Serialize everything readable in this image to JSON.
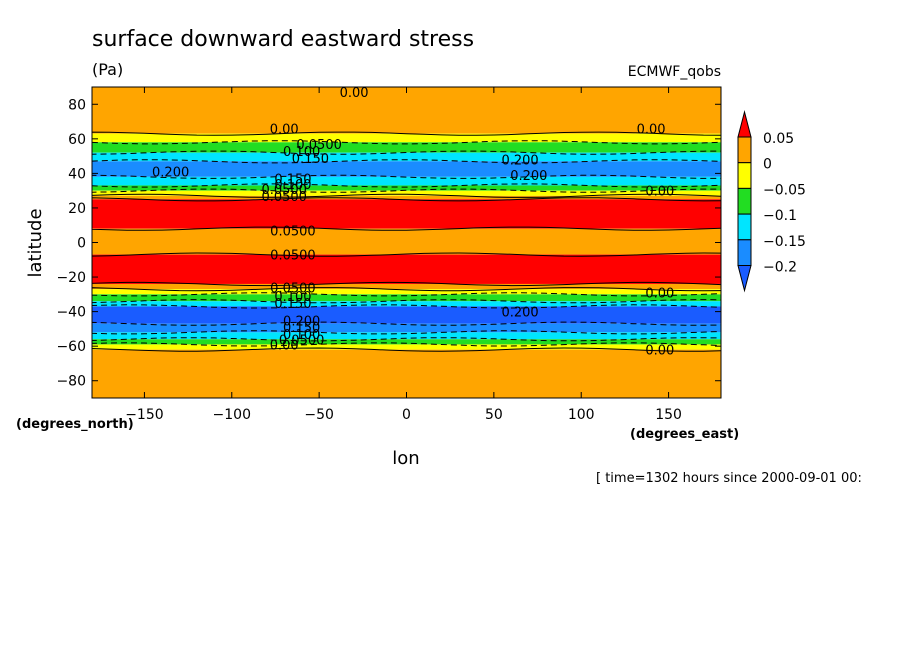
{
  "chart_data": {
    "type": "heatmap",
    "title": "surface downward eastward stress",
    "units": "(Pa)",
    "dataset": "ECMWF_qobs",
    "xlabel": "lon",
    "ylabel": "latitude",
    "x_units": "(degrees_east)",
    "y_units": "(degrees_north)",
    "time_label": "[ time=1302 hours since 2000-09-01 00:",
    "xlim": [
      -180,
      180
    ],
    "ylim": [
      -90,
      90
    ],
    "x_ticks": [
      -150,
      -100,
      -50,
      0,
      50,
      100,
      150
    ],
    "y_ticks": [
      80,
      60,
      40,
      20,
      0,
      -20,
      -40,
      -60,
      -80
    ],
    "colorbar": {
      "levels": [
        "0.05",
        "0",
        "-0.05",
        "-0.1",
        "-0.15",
        "-0.2"
      ],
      "colors": {
        "above_0.05": "#ff0000",
        "0_to_0.05": "#ffa500",
        "-0.05_to_0": "#ffff00",
        "-0.1_to_-0.05": "#22dd22",
        "-0.15_to_-0.1": "#00e5ff",
        "-0.2_to_-0.15": "#1a8cff",
        "below_-0.2": "#1a5cff"
      }
    },
    "latitude_bands": [
      {
        "lat": [
          90,
          63
        ],
        "class": "0_to_0.05"
      },
      {
        "lat": [
          63,
          58
        ],
        "class": "-0.05_to_0"
      },
      {
        "lat": [
          58,
          52
        ],
        "class": "-0.1_to_-0.05"
      },
      {
        "lat": [
          52,
          47
        ],
        "class": "-0.15_to_-0.1"
      },
      {
        "lat": [
          47,
          38
        ],
        "class": "-0.2_to_-0.15"
      },
      {
        "lat": [
          38,
          33
        ],
        "class": "-0.15_to_-0.1"
      },
      {
        "lat": [
          33,
          30
        ],
        "class": "-0.1_to_-0.05"
      },
      {
        "lat": [
          30,
          27
        ],
        "class": "-0.05_to_0"
      },
      {
        "lat": [
          27,
          25
        ],
        "class": "0_to_0.05"
      },
      {
        "lat": [
          25,
          8
        ],
        "class": "above_0.05"
      },
      {
        "lat": [
          8,
          -7
        ],
        "class": "0_to_0.05"
      },
      {
        "lat": [
          -7,
          -24
        ],
        "class": "above_0.05"
      },
      {
        "lat": [
          -24,
          -27
        ],
        "class": "0_to_0.05"
      },
      {
        "lat": [
          -27,
          -30
        ],
        "class": "-0.05_to_0"
      },
      {
        "lat": [
          -30,
          -34
        ],
        "class": "-0.1_to_-0.05"
      },
      {
        "lat": [
          -34,
          -37
        ],
        "class": "-0.15_to_-0.1"
      },
      {
        "lat": [
          -37,
          -47
        ],
        "class": "below_-0.2"
      },
      {
        "lat": [
          -47,
          -52
        ],
        "class": "-0.2_to_-0.15"
      },
      {
        "lat": [
          -52,
          -56
        ],
        "class": "-0.15_to_-0.1"
      },
      {
        "lat": [
          -56,
          -59
        ],
        "class": "-0.1_to_-0.05"
      },
      {
        "lat": [
          -59,
          -62
        ],
        "class": "-0.05_to_0"
      },
      {
        "lat": [
          -62,
          -90
        ],
        "class": "0_to_0.05"
      }
    ],
    "contour_labels": [
      {
        "text": "0.00",
        "lon": -30,
        "lat": 87
      },
      {
        "text": "0.00",
        "lon": -70,
        "lat": 66
      },
      {
        "text": "0.00",
        "lon": 140,
        "lat": 66
      },
      {
        "text": "0.0500",
        "lon": -50,
        "lat": 57
      },
      {
        "text": "0.100",
        "lon": -60,
        "lat": 53
      },
      {
        "text": "0.150",
        "lon": -55,
        "lat": 49
      },
      {
        "text": "0.200",
        "lon": 65,
        "lat": 48
      },
      {
        "text": "0.200",
        "lon": -135,
        "lat": 41
      },
      {
        "text": "0.200",
        "lon": 70,
        "lat": 39
      },
      {
        "text": "0.150",
        "lon": -65,
        "lat": 37
      },
      {
        "text": "0.100",
        "lon": -65,
        "lat": 34
      },
      {
        "text": "0.0500",
        "lon": -70,
        "lat": 31
      },
      {
        "text": "0.00",
        "lon": 145,
        "lat": 30
      },
      {
        "text": "0.0500",
        "lon": -70,
        "lat": 27
      },
      {
        "text": "0.0500",
        "lon": -65,
        "lat": 7
      },
      {
        "text": "0.0500",
        "lon": -65,
        "lat": -7
      },
      {
        "text": "0.0500",
        "lon": -65,
        "lat": -26
      },
      {
        "text": "0.00",
        "lon": 145,
        "lat": -29
      },
      {
        "text": "0.100",
        "lon": -65,
        "lat": -31
      },
      {
        "text": "0.150",
        "lon": -65,
        "lat": -35
      },
      {
        "text": "0.200",
        "lon": 65,
        "lat": -40
      },
      {
        "text": "0.200",
        "lon": -60,
        "lat": -45
      },
      {
        "text": "0.150",
        "lon": -60,
        "lat": -49
      },
      {
        "text": "0.100",
        "lon": -60,
        "lat": -53
      },
      {
        "text": "0.0500",
        "lon": -60,
        "lat": -56
      },
      {
        "text": "0.00",
        "lon": -70,
        "lat": -59
      },
      {
        "text": "0.00",
        "lon": 145,
        "lat": -62
      }
    ]
  }
}
